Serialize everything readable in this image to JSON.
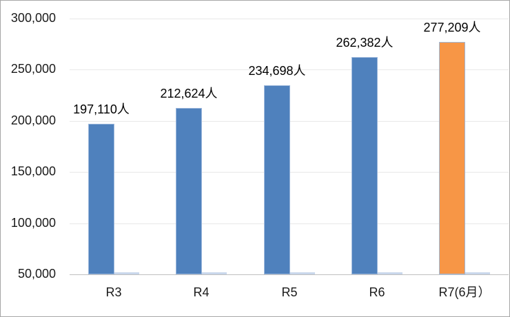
{
  "chart_data": {
    "type": "bar",
    "title": "",
    "xlabel": "",
    "ylabel": "",
    "categories": [
      "R3",
      "R4",
      "R5",
      "R6",
      "R7(6月）"
    ],
    "series": [
      {
        "name": "main",
        "values": [
          197110,
          212624,
          234698,
          262382,
          277209
        ],
        "data_labels": [
          "197,110人",
          "212,624人",
          "234,698人",
          "262,382人",
          "277,209人"
        ],
        "bar_colors": [
          "#4F81BD",
          "#4F81BD",
          "#4F81BD",
          "#4F81BD",
          "#F79646"
        ]
      }
    ],
    "y_axis": {
      "min": 50000,
      "max": 300000,
      "tick_interval": 50000,
      "ticks": [
        {
          "value": 50000,
          "label": "50,000"
        },
        {
          "value": 100000,
          "label": "100,000"
        },
        {
          "value": 150000,
          "label": "150,000"
        },
        {
          "value": 200000,
          "label": "200,000"
        },
        {
          "value": 250000,
          "label": "250,000"
        },
        {
          "value": 300000,
          "label": "300,000"
        }
      ]
    },
    "grid": true,
    "legend_position": "none",
    "secondary_sliver_visible": true,
    "colors": {
      "bar_border": "#9DB8DC",
      "secondary_sliver": "#C9D7EB",
      "gridline": "#E8E8E8",
      "axis_line": "#BFBFBF",
      "background": "#FFFFFF",
      "outer_border": "#A6A6A6"
    }
  }
}
